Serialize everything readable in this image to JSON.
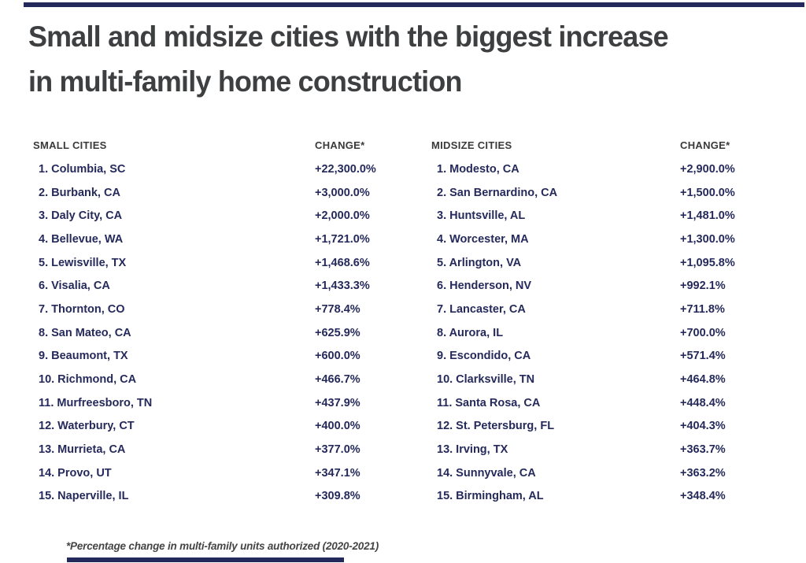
{
  "colors": {
    "background": "#ffffff",
    "navy_text": "#252a5b",
    "title_text": "#3e3f41",
    "header_text": "#3a3a3a",
    "footnote_text": "#454545",
    "accent_bar": "#23295a"
  },
  "header": {
    "title_line1": "Small and midsize cities with the biggest increase",
    "title_line2": "in multi-family home construction"
  },
  "tables": {
    "small": {
      "column_header": "SMALL CITIES",
      "change_header": "CHANGE*",
      "rows": [
        {
          "rank": "1.",
          "city": "Columbia, SC",
          "change": "+22,300.0%"
        },
        {
          "rank": "2.",
          "city": "Burbank, CA",
          "change": "+3,000.0%"
        },
        {
          "rank": "3.",
          "city": "Daly City, CA",
          "change": "+2,000.0%"
        },
        {
          "rank": "4.",
          "city": "Bellevue, WA",
          "change": "+1,721.0%"
        },
        {
          "rank": "5.",
          "city": "Lewisville, TX",
          "change": "+1,468.6%"
        },
        {
          "rank": "6.",
          "city": "Visalia, CA",
          "change": "+1,433.3%"
        },
        {
          "rank": "7.",
          "city": "Thornton, CO",
          "change": "+778.4%"
        },
        {
          "rank": "8.",
          "city": "San Mateo, CA",
          "change": "+625.9%"
        },
        {
          "rank": "9.",
          "city": "Beaumont, TX",
          "change": "+600.0%"
        },
        {
          "rank": "10.",
          "city": "Richmond, CA",
          "change": "+466.7%"
        },
        {
          "rank": "11.",
          "city": "Murfreesboro, TN",
          "change": "+437.9%"
        },
        {
          "rank": "12.",
          "city": "Waterbury, CT",
          "change": "+400.0%"
        },
        {
          "rank": "13.",
          "city": "Murrieta, CA",
          "change": "+377.0%"
        },
        {
          "rank": "14.",
          "city": "Provo, UT",
          "change": "+347.1%"
        },
        {
          "rank": "15.",
          "city": "Naperville, IL",
          "change": "+309.8%"
        }
      ]
    },
    "midsize": {
      "column_header": "MIDSIZE CITIES",
      "change_header": "CHANGE*",
      "rows": [
        {
          "rank": "1.",
          "city": "Modesto, CA",
          "change": "+2,900.0%"
        },
        {
          "rank": "2.",
          "city": "San Bernardino, CA",
          "change": "+1,500.0%"
        },
        {
          "rank": "3.",
          "city": "Huntsville, AL",
          "change": "+1,481.0%"
        },
        {
          "rank": "4.",
          "city": "Worcester, MA",
          "change": "+1,300.0%"
        },
        {
          "rank": "5.",
          "city": "Arlington, VA",
          "change": "+1,095.8%"
        },
        {
          "rank": "6.",
          "city": "Henderson, NV",
          "change": "+992.1%"
        },
        {
          "rank": "7.",
          "city": "Lancaster, CA",
          "change": "+711.8%"
        },
        {
          "rank": "8.",
          "city": "Aurora, IL",
          "change": "+700.0%"
        },
        {
          "rank": "9.",
          "city": "Escondido, CA",
          "change": "+571.4%"
        },
        {
          "rank": "10.",
          "city": "Clarksville, TN",
          "change": "+464.8%"
        },
        {
          "rank": "11.",
          "city": "Santa Rosa, CA",
          "change": "+448.4%"
        },
        {
          "rank": "12.",
          "city": "St. Petersburg, FL",
          "change": "+404.3%"
        },
        {
          "rank": "13.",
          "city": "Irving, TX",
          "change": "+363.7%"
        },
        {
          "rank": "14.",
          "city": "Sunnyvale, CA",
          "change": "+363.2%"
        },
        {
          "rank": "15.",
          "city": "Birmingham, AL",
          "change": "+348.4%"
        }
      ]
    }
  },
  "footnote": "*Percentage change in multi-family units authorized (2020-2021)",
  "chart_data": {
    "type": "table",
    "title": "Small and midsize cities with the biggest increase in multi-family home construction",
    "footnote": "*Percentage change in multi-family units authorized (2020-2021)",
    "tables": [
      {
        "name": "SMALL CITIES",
        "columns": [
          "SMALL CITIES",
          "CHANGE*"
        ],
        "rows": [
          {
            "rank": 1,
            "city": "Columbia, SC",
            "change_pct": 22300.0
          },
          {
            "rank": 2,
            "city": "Burbank, CA",
            "change_pct": 3000.0
          },
          {
            "rank": 3,
            "city": "Daly City, CA",
            "change_pct": 2000.0
          },
          {
            "rank": 4,
            "city": "Bellevue, WA",
            "change_pct": 1721.0
          },
          {
            "rank": 5,
            "city": "Lewisville, TX",
            "change_pct": 1468.6
          },
          {
            "rank": 6,
            "city": "Visalia, CA",
            "change_pct": 1433.3
          },
          {
            "rank": 7,
            "city": "Thornton, CO",
            "change_pct": 778.4
          },
          {
            "rank": 8,
            "city": "San Mateo, CA",
            "change_pct": 625.9
          },
          {
            "rank": 9,
            "city": "Beaumont, TX",
            "change_pct": 600.0
          },
          {
            "rank": 10,
            "city": "Richmond, CA",
            "change_pct": 466.7
          },
          {
            "rank": 11,
            "city": "Murfreesboro, TN",
            "change_pct": 437.9
          },
          {
            "rank": 12,
            "city": "Waterbury, CT",
            "change_pct": 400.0
          },
          {
            "rank": 13,
            "city": "Murrieta, CA",
            "change_pct": 377.0
          },
          {
            "rank": 14,
            "city": "Provo, UT",
            "change_pct": 347.1
          },
          {
            "rank": 15,
            "city": "Naperville, IL",
            "change_pct": 309.8
          }
        ]
      },
      {
        "name": "MIDSIZE CITIES",
        "columns": [
          "MIDSIZE CITIES",
          "CHANGE*"
        ],
        "rows": [
          {
            "rank": 1,
            "city": "Modesto, CA",
            "change_pct": 2900.0
          },
          {
            "rank": 2,
            "city": "San Bernardino, CA",
            "change_pct": 1500.0
          },
          {
            "rank": 3,
            "city": "Huntsville, AL",
            "change_pct": 1481.0
          },
          {
            "rank": 4,
            "city": "Worcester, MA",
            "change_pct": 1300.0
          },
          {
            "rank": 5,
            "city": "Arlington, VA",
            "change_pct": 1095.8
          },
          {
            "rank": 6,
            "city": "Henderson, NV",
            "change_pct": 992.1
          },
          {
            "rank": 7,
            "city": "Lancaster, CA",
            "change_pct": 711.8
          },
          {
            "rank": 8,
            "city": "Aurora, IL",
            "change_pct": 700.0
          },
          {
            "rank": 9,
            "city": "Escondido, CA",
            "change_pct": 571.4
          },
          {
            "rank": 10,
            "city": "Clarksville, TN",
            "change_pct": 464.8
          },
          {
            "rank": 11,
            "city": "Santa Rosa, CA",
            "change_pct": 448.4
          },
          {
            "rank": 12,
            "city": "St. Petersburg, FL",
            "change_pct": 404.3
          },
          {
            "rank": 13,
            "city": "Irving, TX",
            "change_pct": 363.7
          },
          {
            "rank": 14,
            "city": "Sunnyvale, CA",
            "change_pct": 363.2
          },
          {
            "rank": 15,
            "city": "Birmingham, AL",
            "change_pct": 348.4
          }
        ]
      }
    ]
  }
}
